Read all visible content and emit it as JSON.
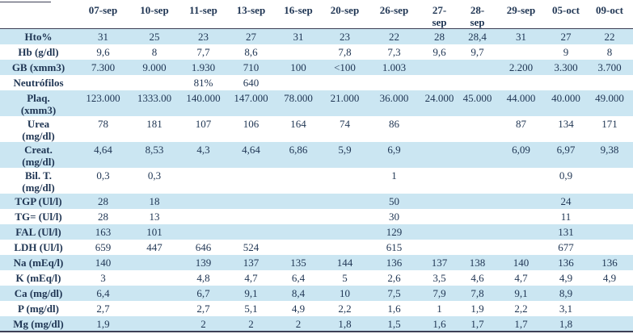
{
  "colors": {
    "band_blue": "#cbe6f2",
    "text_navy": "#1f3553",
    "rule_dark": "#3d3f55",
    "background": "#ffffff"
  },
  "table": {
    "corner_label": "",
    "columns": [
      "07-sep",
      "10-sep",
      "11-sep",
      "13-sep",
      "16-sep",
      "20-sep",
      "26-sep",
      "27-\nsep",
      "28-\nsep",
      "29-sep",
      "05-oct",
      "09-oct"
    ],
    "rows": [
      {
        "label": "Hto%",
        "tall": false,
        "values": [
          "31",
          "25",
          "23",
          "27",
          "31",
          "23",
          "22",
          "28",
          "28,4",
          "31",
          "27",
          "22"
        ]
      },
      {
        "label": "Hb (g/dl)",
        "tall": false,
        "values": [
          "9,6",
          "8",
          "7,7",
          "8,6",
          "",
          "7,8",
          "7,3",
          "9,6",
          "9,7",
          "",
          "9",
          "8"
        ]
      },
      {
        "label": "GB (xmm3)",
        "tall": false,
        "values": [
          "7.300",
          "9.000",
          "1.930",
          "710",
          "100",
          "<100",
          "1.003",
          "",
          "",
          "2.200",
          "3.300",
          "3.700"
        ]
      },
      {
        "label": "Neutrófilos",
        "tall": false,
        "values": [
          "",
          "",
          "81%",
          "640",
          "",
          "",
          "",
          "",
          "",
          "",
          "",
          ""
        ]
      },
      {
        "label": "Plaq.\n(xmm3)",
        "tall": true,
        "values": [
          "123.000",
          "1333.00",
          "140.000",
          "147.000",
          "78.000",
          "21.000",
          "36.000",
          "24.000",
          "45.000",
          "44.000",
          "40.000",
          "49.000"
        ]
      },
      {
        "label": "Urea\n(mg/dl)",
        "tall": true,
        "values": [
          "78",
          "181",
          "107",
          "106",
          "164",
          "74",
          "86",
          "",
          "",
          "87",
          "134",
          "171"
        ]
      },
      {
        "label": "Creat.\n(mg/dl)",
        "tall": true,
        "values": [
          "4,64",
          "8,53",
          "4,3",
          "4,64",
          "6,86",
          "5,9",
          "6,9",
          "",
          "",
          "6,09",
          "6,97",
          "9,38"
        ]
      },
      {
        "label": "Bil. T.\n(mg/dl)",
        "tall": true,
        "values": [
          "0,3",
          "0,3",
          "",
          "",
          "",
          "",
          "1",
          "",
          "",
          "",
          "0,9",
          ""
        ]
      },
      {
        "label": "TGP (Ul/l)",
        "tall": false,
        "values": [
          "28",
          "18",
          "",
          "",
          "",
          "",
          "50",
          "",
          "",
          "",
          "24",
          ""
        ]
      },
      {
        "label": "TG= (Ul/l)",
        "tall": false,
        "values": [
          "28",
          "13",
          "",
          "",
          "",
          "",
          "30",
          "",
          "",
          "",
          "11",
          ""
        ]
      },
      {
        "label": "FAL (Ul/l)",
        "tall": false,
        "values": [
          "163",
          "101",
          "",
          "",
          "",
          "",
          "129",
          "",
          "",
          "",
          "131",
          ""
        ]
      },
      {
        "label": "LDH (Ul/l)",
        "tall": false,
        "values": [
          "659",
          "447",
          "646",
          "524",
          "",
          "",
          "615",
          "",
          "",
          "",
          "677",
          ""
        ]
      },
      {
        "label": "Na (mEq/l)",
        "tall": false,
        "values": [
          "140",
          "",
          "139",
          "137",
          "135",
          "144",
          "136",
          "137",
          "138",
          "140",
          "136",
          "136"
        ]
      },
      {
        "label": "K (mEq/l)",
        "tall": false,
        "values": [
          "3",
          "",
          "4,8",
          "4,7",
          "6,4",
          "5",
          "2,6",
          "3,5",
          "4,6",
          "4,7",
          "4,9",
          "4,9"
        ]
      },
      {
        "label": "Ca (mg/dl)",
        "tall": false,
        "values": [
          "6,4",
          "",
          "6,7",
          "9,1",
          "8,4",
          "10",
          "7,5",
          "7,9",
          "7,8",
          "9,1",
          "8,9",
          ""
        ]
      },
      {
        "label": "P (mg/dl)",
        "tall": false,
        "values": [
          "2,7",
          "",
          "2,7",
          "5,1",
          "4,9",
          "2,2",
          "1,6",
          "1",
          "1,9",
          "2,2",
          "3,1",
          ""
        ]
      },
      {
        "label": "Mg (mg/dl)",
        "tall": false,
        "values": [
          "1,9",
          "",
          "2",
          "2",
          "2",
          "1,8",
          "1,5",
          "1,6",
          "1,7",
          "1,7",
          "1,8",
          ""
        ]
      }
    ]
  }
}
